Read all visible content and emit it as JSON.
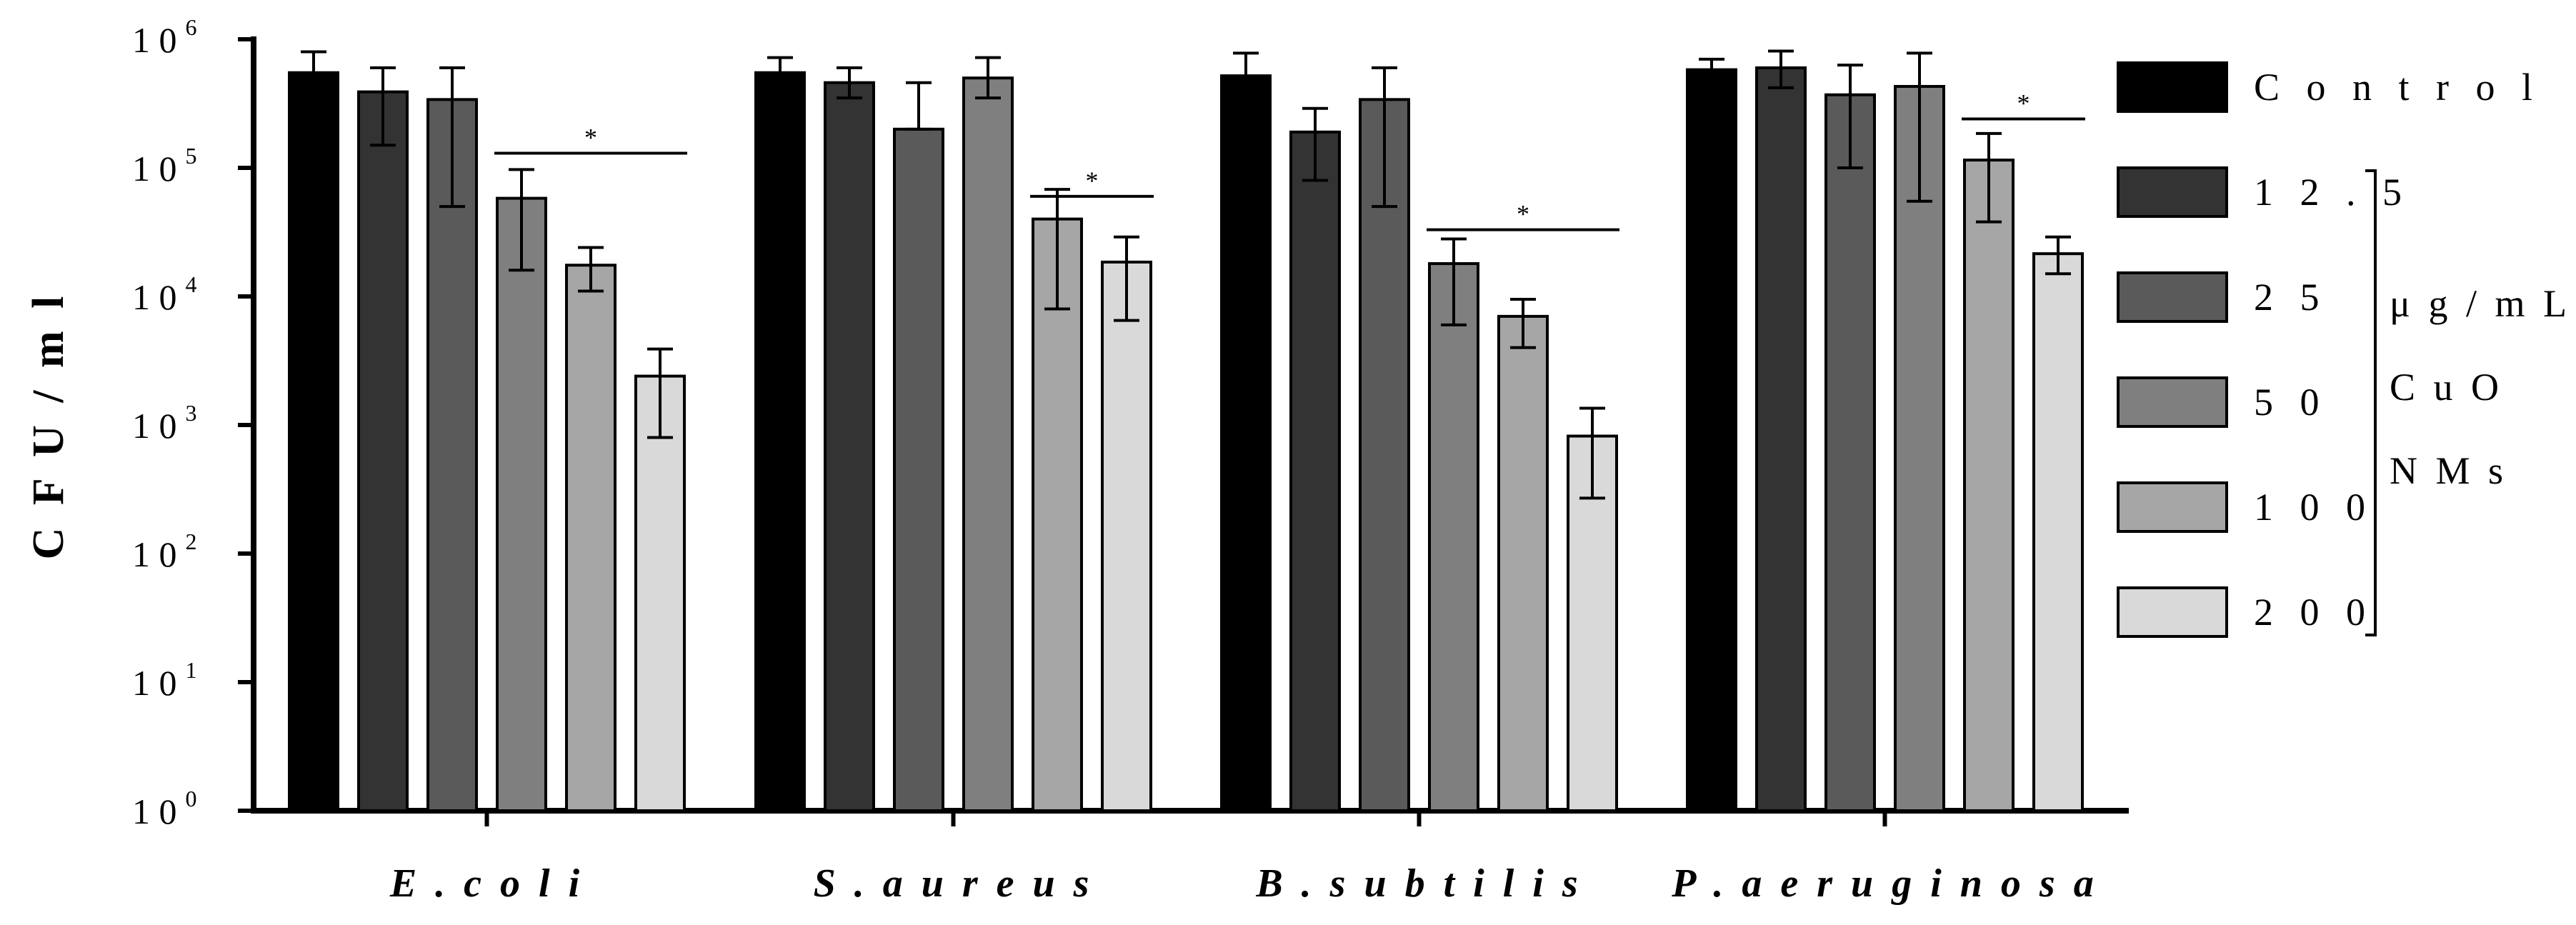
{
  "chart_data": {
    "type": "bar",
    "yscale": "log",
    "ylim": [
      1,
      1000000
    ],
    "ylabel": "C F U / m l",
    "yticks": [
      {
        "base": "1 0",
        "exp": "0",
        "value": 1
      },
      {
        "base": "1 0",
        "exp": "1",
        "value": 10
      },
      {
        "base": "1 0",
        "exp": "2",
        "value": 100
      },
      {
        "base": "1 0",
        "exp": "3",
        "value": 1000
      },
      {
        "base": "1 0",
        "exp": "4",
        "value": 10000
      },
      {
        "base": "1 0",
        "exp": "5",
        "value": 100000
      },
      {
        "base": "1 0",
        "exp": "6",
        "value": 1000000
      }
    ],
    "categories": [
      "E.coli",
      "S.aureus",
      "B.subtilis",
      "P.aeruginosa"
    ],
    "category_labels": [
      "E . c o l i",
      "S . a u r e u s",
      "B . s u b t i l i s",
      "P . a e r u g i n o s a"
    ],
    "series": [
      {
        "name": "Control",
        "label": "C o n t r o l",
        "color": "#000000",
        "values": [
          550000,
          550000,
          520000,
          580000
        ],
        "err_low": [
          420000,
          420000,
          380000,
          480000
        ],
        "err_high": [
          800000,
          720000,
          780000,
          700000
        ]
      },
      {
        "name": "12.5",
        "label": "1 2 . 5",
        "color": "#333333",
        "values": [
          390000,
          460000,
          190000,
          600000
        ],
        "err_low": [
          150000,
          350000,
          80000,
          420000
        ],
        "err_high": [
          600000,
          600000,
          290000,
          810000
        ]
      },
      {
        "name": "25",
        "label": "2 5",
        "color": "#5a5a5a",
        "values": [
          340000,
          200000,
          340000,
          370000
        ],
        "err_low": [
          50000,
          200000,
          50000,
          100000
        ],
        "err_high": [
          600000,
          460000,
          600000,
          630000
        ]
      },
      {
        "name": "50",
        "label": "5 0",
        "color": "#7f7f7f",
        "values": [
          58000,
          500000,
          18000,
          430000
        ],
        "err_low": [
          16000,
          350000,
          6000,
          55000
        ],
        "err_high": [
          97000,
          720000,
          28000,
          780000
        ]
      },
      {
        "name": "100",
        "label": "1 0 0",
        "color": "#a6a6a6",
        "values": [
          17500,
          40000,
          7000,
          115000
        ],
        "err_low": [
          11000,
          8000,
          4000,
          38000
        ],
        "err_high": [
          24000,
          68000,
          9500,
          185000
        ]
      },
      {
        "name": "200",
        "label": "2 0 0",
        "color": "#d9d9d9",
        "values": [
          2400,
          18500,
          820,
          21500
        ],
        "err_low": [
          800,
          6500,
          270,
          15000
        ],
        "err_high": [
          3900,
          29000,
          1350,
          29000
        ]
      }
    ],
    "significance": [
      {
        "category": "E.coli",
        "from_series": 3,
        "to_series": 5,
        "value": 130000,
        "label": "*"
      },
      {
        "category": "S.aureus",
        "from_series": 4,
        "to_series": 5,
        "value": 60000,
        "label": "*"
      },
      {
        "category": "B.subtilis",
        "from_series": 3,
        "to_series": 5,
        "value": 33000,
        "label": "*"
      },
      {
        "category": "P.aeruginosa",
        "from_series": 4,
        "to_series": 5,
        "value": 240000,
        "label": "*"
      }
    ],
    "legend": {
      "position": "right",
      "bracket_lines": [
        "μ g / m L",
        "C u O",
        "N M s"
      ]
    },
    "grid": false
  }
}
